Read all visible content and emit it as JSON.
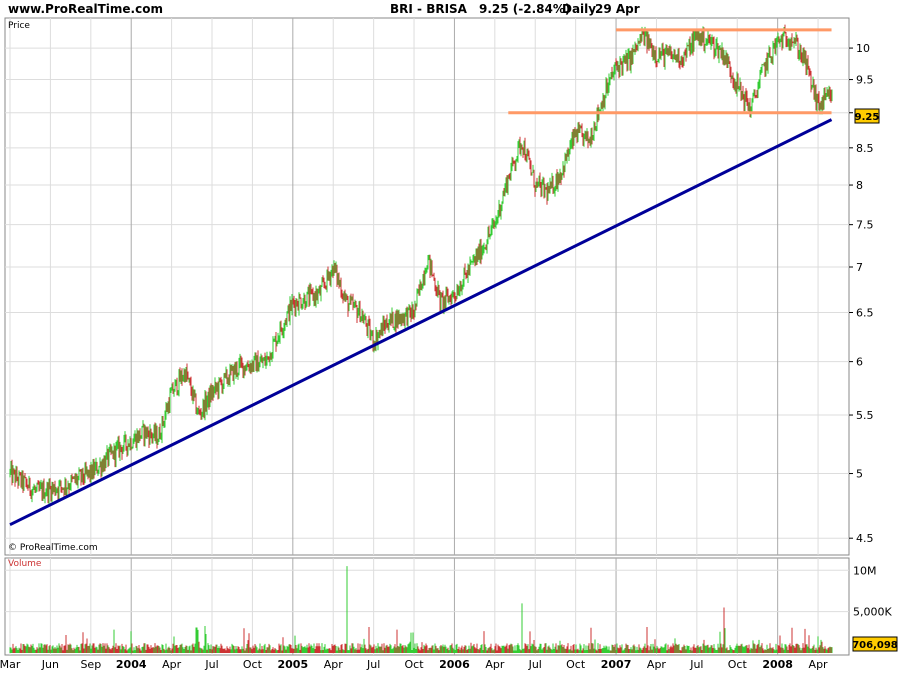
{
  "header": {
    "site": "www.ProRealTime.com",
    "instrument": "BRI - BRISA",
    "last_price": "9.25 (-2.84%)",
    "period": "Daily",
    "date": "29 Apr"
  },
  "price_panel": {
    "label": "Price",
    "copyright": "© ProRealTime.com",
    "last_price_tag": "9.25"
  },
  "volume_panel": {
    "label": "Volume",
    "last_volume_tag": "706,098"
  },
  "colors": {
    "up": "#33cc33",
    "down": "#cc3333",
    "trendline": "#000099",
    "channel": "#ff9966",
    "grid": "#dddddd",
    "tag_bg": "#ffcc00"
  },
  "chart_data": [
    {
      "type": "candlestick",
      "title": "BRI - BRISA",
      "ylabel": "Price",
      "scale": "log",
      "ylim": [
        4.4,
        10.4
      ],
      "y_ticks": [
        "4.5",
        "5",
        "5.5",
        "6",
        "6.5",
        "7",
        "7.5",
        "8",
        "8.5",
        "9",
        "9.5",
        "10"
      ],
      "x_ticks": [
        "Mar",
        "Jun",
        "Sep",
        "2004",
        "Apr",
        "Jul",
        "Oct",
        "2005",
        "Apr",
        "Jul",
        "Oct",
        "2006",
        "Apr",
        "Jul",
        "Oct",
        "2007",
        "Apr",
        "Jul",
        "Oct",
        "2008",
        "Apr"
      ],
      "grid": true,
      "series": [
        {
          "name": "Close",
          "x": [
            "2003-03",
            "2003-05",
            "2003-07",
            "2003-09",
            "2003-11",
            "2004-01",
            "2004-02",
            "2004-03",
            "2004-04",
            "2004-05",
            "2004-06",
            "2004-08",
            "2004-10",
            "2004-11",
            "2004-12",
            "2005-02",
            "2005-03",
            "2005-04",
            "2005-05",
            "2005-06",
            "2005-07",
            "2005-09",
            "2005-10",
            "2005-11",
            "2005-12",
            "2006-01",
            "2006-02",
            "2006-03",
            "2006-04",
            "2006-05",
            "2006-06",
            "2006-07",
            "2006-08",
            "2006-09",
            "2006-10",
            "2006-11",
            "2006-12",
            "2007-01",
            "2007-02",
            "2007-03",
            "2007-05",
            "2007-06",
            "2007-07",
            "2007-08",
            "2007-09",
            "2007-10",
            "2007-11",
            "2007-12",
            "2008-01",
            "2008-02",
            "2008-03",
            "2008-04"
          ],
          "values": [
            5.0,
            4.85,
            4.9,
            5.0,
            5.2,
            5.35,
            5.3,
            5.7,
            5.9,
            5.5,
            5.7,
            5.95,
            6.0,
            6.3,
            6.6,
            6.7,
            7.0,
            6.6,
            6.5,
            6.2,
            6.4,
            6.5,
            7.1,
            6.6,
            6.7,
            6.95,
            7.2,
            7.5,
            8.1,
            8.6,
            8.0,
            7.9,
            8.2,
            8.7,
            8.6,
            9.2,
            9.7,
            9.8,
            10.2,
            9.9,
            9.85,
            10.2,
            10.1,
            9.9,
            9.4,
            9.05,
            9.7,
            10.1,
            10.2,
            9.8,
            9.1,
            9.25
          ]
        },
        {
          "name": "Trendline",
          "x": [
            "2003-03",
            "2008-04"
          ],
          "values": [
            4.6,
            8.9
          ]
        },
        {
          "name": "Resistance",
          "x": [
            "2006-12",
            "2008-04"
          ],
          "values": [
            10.3,
            10.3
          ]
        },
        {
          "name": "Support",
          "x": [
            "2006-04",
            "2008-04"
          ],
          "values": [
            9.0,
            9.0
          ]
        }
      ]
    },
    {
      "type": "bar",
      "ylabel": "Volume",
      "y_ticks": [
        "5,000K",
        "10M"
      ],
      "ylim": [
        0,
        11000000
      ],
      "x": [
        "2003-03",
        "2005-04",
        "2006-05",
        "2007-08",
        "2008-04"
      ],
      "values": [
        700000,
        10500000,
        6000000,
        5500000,
        706098
      ]
    }
  ]
}
